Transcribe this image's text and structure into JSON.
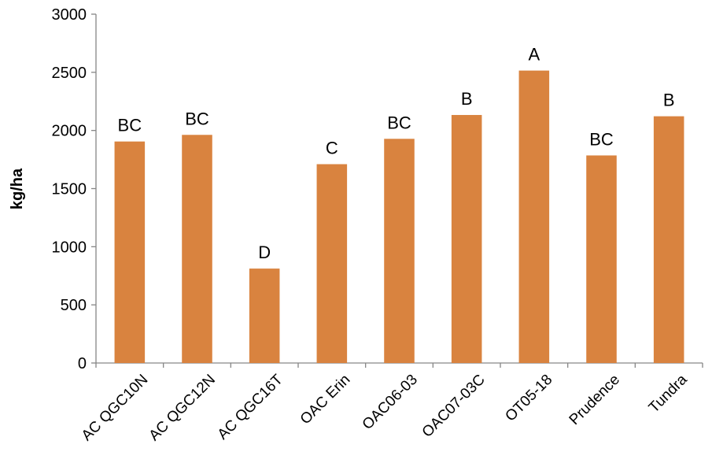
{
  "chart_data": {
    "type": "bar",
    "categories": [
      "AC QGC10N",
      "AC QGC12N",
      "AC QGC16T",
      "OAC Erin",
      "OAC06-03",
      "OAC07-03C",
      "OT05-18",
      "Prudence",
      "Tundra"
    ],
    "values": [
      1905,
      1962,
      812,
      1710,
      1928,
      2133,
      2515,
      1785,
      2122
    ],
    "data_labels": [
      "BC",
      "BC",
      "D",
      "C",
      "BC",
      "B",
      "A",
      "BC",
      "B"
    ],
    "ylabel": "kg/ha",
    "xlabel": "",
    "ylim": [
      0,
      3000
    ],
    "yticks": [
      0,
      500,
      1000,
      1500,
      2000,
      2500,
      3000
    ],
    "bar_color": "#D9833F",
    "grid": false,
    "legend": "none"
  }
}
